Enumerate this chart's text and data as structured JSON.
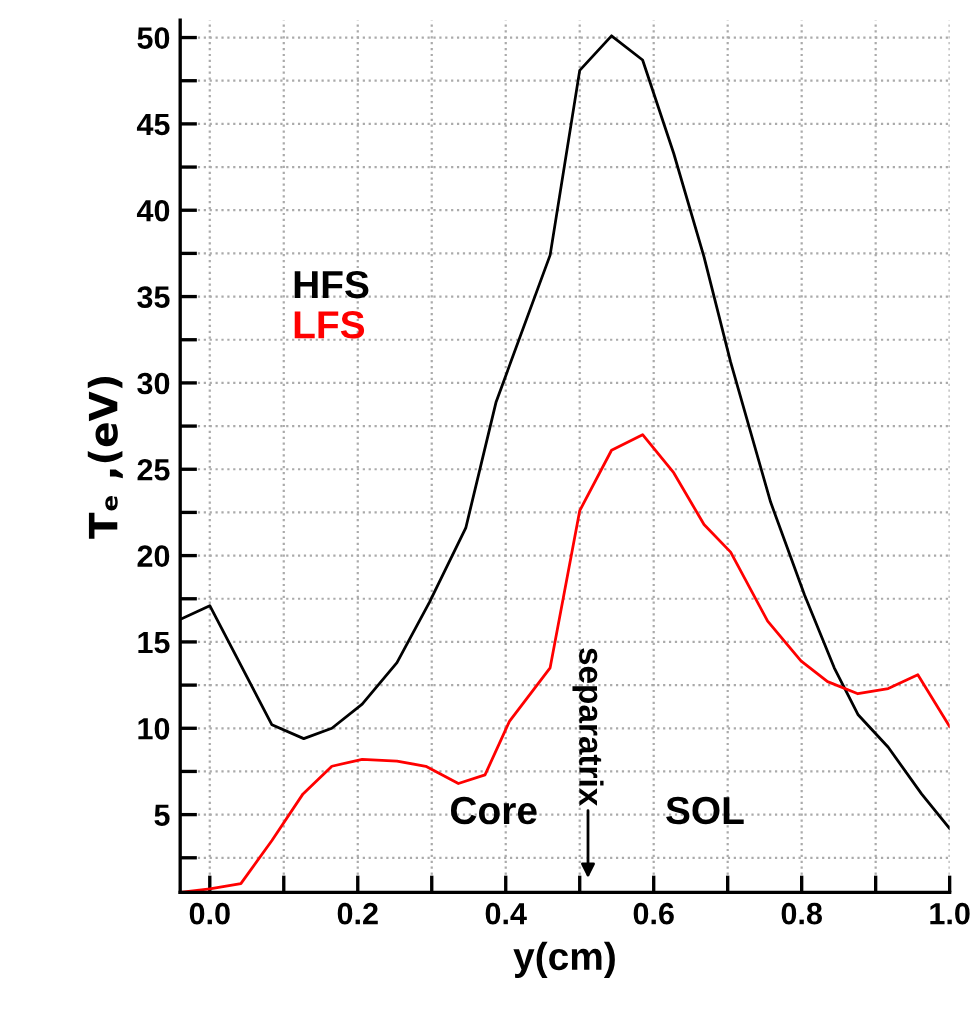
{
  "chart_data": {
    "type": "line",
    "xlabel": "y(cm)",
    "ylabel": "Tₑ ,(eV)",
    "series": [
      {
        "name": "HFS",
        "color": "#000000",
        "x": [
          -0.04,
          0.0,
          0.084,
          0.127,
          0.165,
          0.206,
          0.253,
          0.297,
          0.346,
          0.387,
          0.46,
          0.5,
          0.543,
          0.585,
          0.627,
          0.668,
          0.704,
          0.758,
          0.804,
          0.844,
          0.876,
          0.917,
          0.962,
          1.0
        ],
        "values": [
          16.3,
          17.1,
          10.2,
          9.4,
          10.0,
          11.4,
          13.8,
          17.3,
          21.6,
          28.9,
          37.4,
          48.1,
          50.1,
          48.7,
          43.3,
          37.3,
          31.2,
          23.1,
          17.7,
          13.5,
          10.8,
          8.9,
          6.2,
          4.2
        ]
      },
      {
        "name": "LFS",
        "color": "#ff0000",
        "x": [
          -0.04,
          0.0,
          0.042,
          0.084,
          0.126,
          0.165,
          0.206,
          0.253,
          0.292,
          0.336,
          0.372,
          0.405,
          0.46,
          0.5,
          0.543,
          0.585,
          0.627,
          0.668,
          0.704,
          0.754,
          0.799,
          0.835,
          0.876,
          0.917,
          0.957,
          1.0
        ],
        "values": [
          0.5,
          0.7,
          1.0,
          3.5,
          6.2,
          7.8,
          8.2,
          8.1,
          7.8,
          6.8,
          7.3,
          10.4,
          13.5,
          22.6,
          26.1,
          27.0,
          24.8,
          21.8,
          20.2,
          16.2,
          13.9,
          12.7,
          12.0,
          12.3,
          13.1,
          10.1
        ]
      }
    ],
    "xlim": [
      -0.04,
      1.0
    ],
    "ylim": [
      0.5,
      51
    ],
    "xticks": [
      {
        "value": 0.0,
        "label": "0.0"
      },
      {
        "value": 0.1,
        "label": null
      },
      0.2,
      {
        "value": 0.3,
        "label": null
      },
      0.4,
      {
        "value": 0.5,
        "label": null
      },
      0.6,
      {
        "value": 0.7,
        "label": null
      },
      0.8,
      {
        "value": 0.9,
        "label": null
      },
      {
        "value": 1.0,
        "label": "1.0"
      }
    ],
    "yticks": [
      {
        "value": 2.5,
        "label": null
      },
      5,
      {
        "value": 7.5,
        "label": null
      },
      10,
      {
        "value": 12.5,
        "label": null
      },
      15,
      {
        "value": 17.5,
        "label": null
      },
      20,
      {
        "value": 22.5,
        "label": null
      },
      25,
      {
        "value": 27.5,
        "label": null
      },
      30,
      {
        "value": 32.5,
        "label": null
      },
      35,
      {
        "value": 37.5,
        "label": null
      },
      40,
      {
        "value": 42.5,
        "label": null
      },
      45,
      {
        "value": 47.5,
        "label": null
      },
      50
    ],
    "grid": true,
    "legend": "center left",
    "marker": "none",
    "line_style": "solid",
    "annotations": [
      "Core",
      "SOL",
      "separatrix"
    ]
  }
}
